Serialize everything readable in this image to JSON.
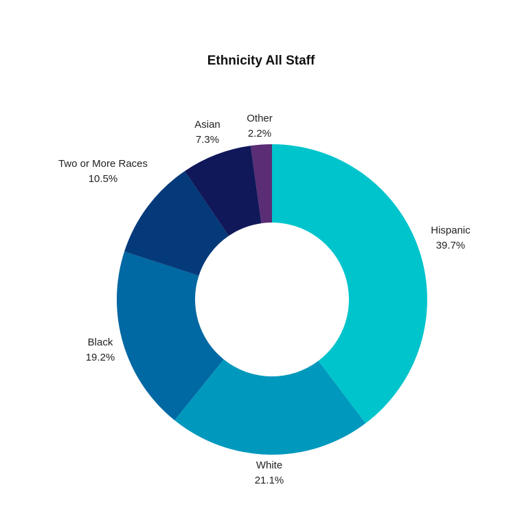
{
  "chart_data": {
    "type": "pie",
    "variant": "donut",
    "title": "Ethnicity All Staff",
    "unit": "%",
    "slices": [
      {
        "label": "Hispanic",
        "value": 39.7,
        "display": "39.7%",
        "color": "#00C4CC"
      },
      {
        "label": "White",
        "value": 21.1,
        "display": "21.1%",
        "color": "#0099BD"
      },
      {
        "label": "Black",
        "value": 19.2,
        "display": "19.2%",
        "color": "#0068A2"
      },
      {
        "label": "Two or More Races",
        "value": 10.5,
        "display": "10.5%",
        "color": "#053A7A"
      },
      {
        "label": "Asian",
        "value": 7.3,
        "display": "7.3%",
        "color": "#10185A"
      },
      {
        "label": "Other",
        "value": 2.2,
        "display": "2.2%",
        "color": "#5A2D74"
      }
    ],
    "start": "top",
    "direction": "clockwise",
    "legend": "none"
  }
}
